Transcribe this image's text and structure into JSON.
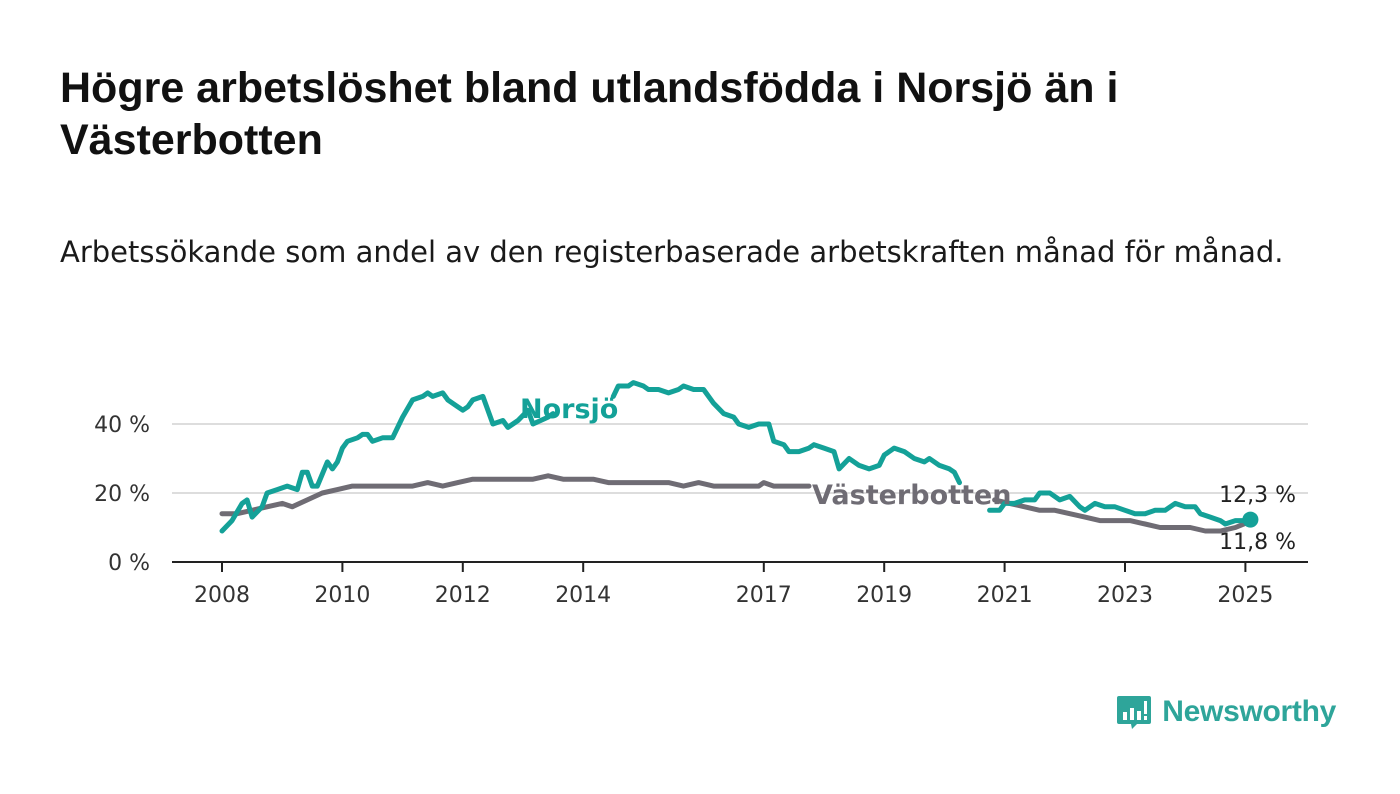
{
  "title": "Högre arbetslöshet bland utlandsfödda i Norsjö än i Västerbotten",
  "subtitle": "Arbetssökande som andel av den registerbaserade arbetskraften månad för månad.",
  "logo": {
    "name": "Newsworthy",
    "color": "#2ea59a"
  },
  "chart_data": {
    "type": "line",
    "title": "Högre arbetslöshet bland utlandsfödda i Norsjö än i Västerbotten",
    "subtitle": "Arbetssökande som andel av den registerbaserade arbetskraften månad för månad.",
    "xlabel": "",
    "ylabel": "",
    "x_ticks": [
      "2008",
      "2010",
      "2012",
      "2014",
      "2017",
      "2019",
      "2021",
      "2023",
      "2025"
    ],
    "y_ticks": [
      "0 %",
      "20 %",
      "40 %"
    ],
    "ylim": [
      0,
      55
    ],
    "grid": true,
    "series": [
      {
        "name": "Norsjö",
        "color": "#14a198",
        "points": [
          [
            "2008-01",
            9
          ],
          [
            "2008-03",
            12
          ],
          [
            "2008-05",
            17
          ],
          [
            "2008-06",
            18
          ],
          [
            "2008-07",
            13
          ],
          [
            "2008-09",
            16
          ],
          [
            "2008-10",
            20
          ],
          [
            "2008-12",
            21
          ],
          [
            "2009-02",
            22
          ],
          [
            "2009-04",
            21
          ],
          [
            "2009-05",
            26
          ],
          [
            "2009-06",
            26
          ],
          [
            "2009-07",
            22
          ],
          [
            "2009-08",
            22
          ],
          [
            "2009-10",
            29
          ],
          [
            "2009-11",
            27
          ],
          [
            "2009-12",
            29
          ],
          [
            "2010-01",
            33
          ],
          [
            "2010-02",
            35
          ],
          [
            "2010-04",
            36
          ],
          [
            "2010-05",
            37
          ],
          [
            "2010-06",
            37
          ],
          [
            "2010-07",
            35
          ],
          [
            "2010-09",
            36
          ],
          [
            "2010-11",
            36
          ],
          [
            "2011-01",
            42
          ],
          [
            "2011-03",
            47
          ],
          [
            "2011-05",
            48
          ],
          [
            "2011-06",
            49
          ],
          [
            "2011-07",
            48
          ],
          [
            "2011-09",
            49
          ],
          [
            "2011-10",
            47
          ],
          [
            "2011-12",
            45
          ],
          [
            "2012-01",
            44
          ],
          [
            "2012-02",
            45
          ],
          [
            "2012-03",
            47
          ],
          [
            "2012-05",
            48
          ],
          [
            "2012-07",
            40
          ],
          [
            "2012-09",
            41
          ],
          [
            "2012-10",
            39
          ],
          [
            "2012-12",
            41
          ],
          [
            "2013-02",
            44
          ],
          [
            "2013-03",
            40
          ],
          [
            "2013-06",
            42
          ],
          [
            "2013-07",
            43
          ],
          null,
          [
            "2014-07",
            48
          ],
          [
            "2014-08",
            51
          ],
          [
            "2014-10",
            51
          ],
          [
            "2014-11",
            52
          ],
          [
            "2015-01",
            51
          ],
          [
            "2015-02",
            50
          ],
          [
            "2015-04",
            50
          ],
          [
            "2015-06",
            49
          ],
          [
            "2015-08",
            50
          ],
          [
            "2015-09",
            51
          ],
          [
            "2015-11",
            50
          ],
          [
            "2016-01",
            50
          ],
          [
            "2016-03",
            46
          ],
          [
            "2016-05",
            43
          ],
          [
            "2016-07",
            42
          ],
          [
            "2016-08",
            40
          ],
          [
            "2016-10",
            39
          ],
          [
            "2016-12",
            40
          ],
          [
            "2017-02",
            40
          ],
          [
            "2017-03",
            35
          ],
          [
            "2017-05",
            34
          ],
          [
            "2017-06",
            32
          ],
          [
            "2017-08",
            32
          ],
          [
            "2017-10",
            33
          ],
          [
            "2017-11",
            34
          ],
          [
            "2018-01",
            33
          ],
          [
            "2018-03",
            32
          ],
          [
            "2018-04",
            27
          ],
          [
            "2018-06",
            30
          ],
          [
            "2018-08",
            28
          ],
          [
            "2018-10",
            27
          ],
          [
            "2018-12",
            28
          ],
          [
            "2019-01",
            31
          ],
          [
            "2019-03",
            33
          ],
          [
            "2019-05",
            32
          ],
          [
            "2019-07",
            30
          ],
          [
            "2019-09",
            29
          ],
          [
            "2019-10",
            30
          ],
          [
            "2019-12",
            28
          ],
          [
            "2020-02",
            27
          ],
          [
            "2020-03",
            26
          ],
          [
            "2020-04",
            23
          ],
          null,
          [
            "2020-10",
            15
          ],
          [
            "2020-12",
            15
          ],
          [
            "2021-01",
            17
          ],
          [
            "2021-03",
            17
          ],
          [
            "2021-05",
            18
          ],
          [
            "2021-07",
            18
          ],
          [
            "2021-08",
            20
          ],
          [
            "2021-10",
            20
          ],
          [
            "2021-12",
            18
          ],
          [
            "2022-02",
            19
          ],
          [
            "2022-04",
            16
          ],
          [
            "2022-05",
            15
          ],
          [
            "2022-07",
            17
          ],
          [
            "2022-09",
            16
          ],
          [
            "2022-11",
            16
          ],
          [
            "2023-01",
            15
          ],
          [
            "2023-03",
            14
          ],
          [
            "2023-05",
            14
          ],
          [
            "2023-07",
            15
          ],
          [
            "2023-09",
            15
          ],
          [
            "2023-11",
            17
          ],
          [
            "2024-01",
            16
          ],
          [
            "2024-03",
            16
          ],
          [
            "2024-04",
            14
          ],
          [
            "2024-06",
            13
          ],
          [
            "2024-08",
            12
          ],
          [
            "2024-09",
            11
          ],
          [
            "2024-11",
            12
          ],
          [
            "2025-01",
            12
          ],
          [
            "2025-02",
            12.3
          ]
        ]
      },
      {
        "name": "Västerbotten",
        "color": "#6f6c74",
        "points": [
          [
            "2008-01",
            14
          ],
          [
            "2008-04",
            14
          ],
          [
            "2008-07",
            15
          ],
          [
            "2008-10",
            16
          ],
          [
            "2009-01",
            17
          ],
          [
            "2009-03",
            16
          ],
          [
            "2009-06",
            18
          ],
          [
            "2009-09",
            20
          ],
          [
            "2009-12",
            21
          ],
          [
            "2010-03",
            22
          ],
          [
            "2010-06",
            22
          ],
          [
            "2010-09",
            22
          ],
          [
            "2010-12",
            22
          ],
          [
            "2011-03",
            22
          ],
          [
            "2011-06",
            23
          ],
          [
            "2011-09",
            22
          ],
          [
            "2011-12",
            23
          ],
          [
            "2012-03",
            24
          ],
          [
            "2012-06",
            24
          ],
          [
            "2012-09",
            24
          ],
          [
            "2012-12",
            24
          ],
          [
            "2013-03",
            24
          ],
          [
            "2013-06",
            25
          ],
          [
            "2013-09",
            24
          ],
          [
            "2013-12",
            24
          ],
          [
            "2014-03",
            24
          ],
          [
            "2014-06",
            23
          ],
          [
            "2014-09",
            23
          ],
          [
            "2014-12",
            23
          ],
          [
            "2015-03",
            23
          ],
          [
            "2015-06",
            23
          ],
          [
            "2015-09",
            22
          ],
          [
            "2015-12",
            23
          ],
          [
            "2016-03",
            22
          ],
          [
            "2016-06",
            22
          ],
          [
            "2016-09",
            22
          ],
          [
            "2016-12",
            22
          ],
          [
            "2017-01",
            23
          ],
          [
            "2017-03",
            22
          ],
          [
            "2017-06",
            22
          ],
          [
            "2017-09",
            22
          ],
          [
            "2017-10",
            22
          ],
          null,
          [
            "2020-11",
            18
          ],
          [
            "2021-02",
            17
          ],
          [
            "2021-05",
            16
          ],
          [
            "2021-08",
            15
          ],
          [
            "2021-11",
            15
          ],
          [
            "2022-02",
            14
          ],
          [
            "2022-05",
            13
          ],
          [
            "2022-08",
            12
          ],
          [
            "2022-11",
            12
          ],
          [
            "2023-02",
            12
          ],
          [
            "2023-05",
            11
          ],
          [
            "2023-08",
            10
          ],
          [
            "2023-11",
            10
          ],
          [
            "2024-02",
            10
          ],
          [
            "2024-05",
            9
          ],
          [
            "2024-08",
            9
          ],
          [
            "2024-11",
            10
          ],
          [
            "2025-02",
            11.8
          ]
        ]
      }
    ],
    "end_labels": [
      "12,3 %",
      "11,8 %"
    ]
  }
}
